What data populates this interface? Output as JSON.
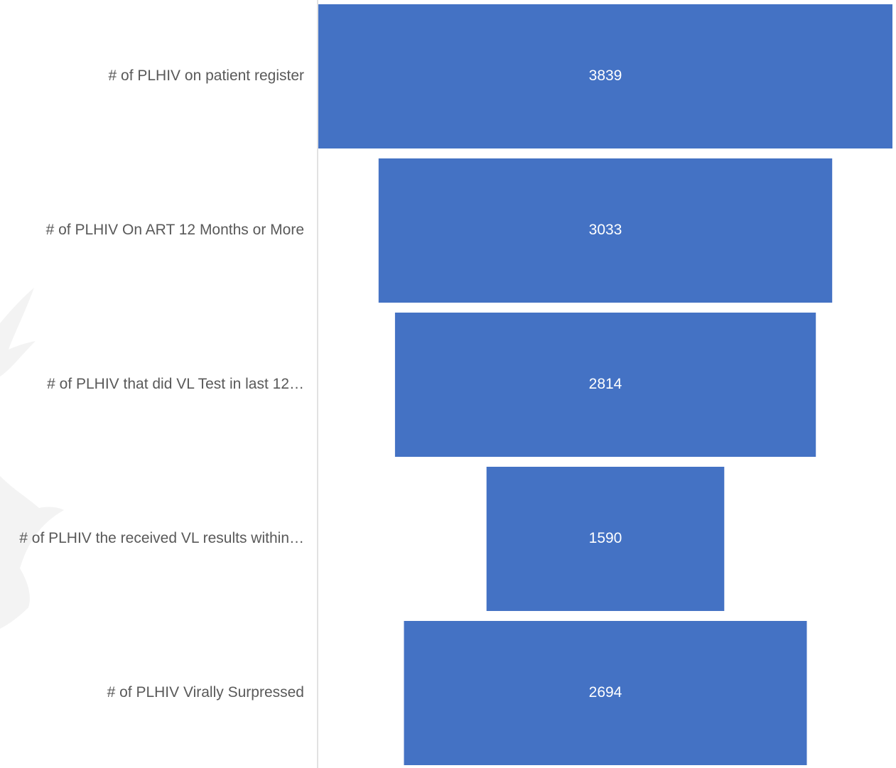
{
  "chart_data": {
    "type": "bar",
    "subtype": "funnel",
    "orientation": "horizontal",
    "categories": [
      "# of PLHIV on patient register",
      "# of PLHIV On ART 12 Months or More",
      "# of PLHIV that did VL Test in last 12…",
      "# of PLHIV the received VL results  within…",
      "# of PLHIV Virally Surpressed"
    ],
    "values": [
      3839,
      3033,
      2814,
      1590,
      2694
    ],
    "data_labels": [
      "3839",
      "3033",
      "2814",
      "1590",
      "2694"
    ],
    "title": "",
    "xlabel": "",
    "ylabel": "",
    "xlim": [
      0,
      3839
    ],
    "grid": false,
    "legend": "none"
  },
  "colors": {
    "bar": "#4472C4",
    "category_text": "#595959",
    "value_text": "#FFFFFF",
    "axis_line": "#D9D9D9",
    "background": "#FFFFFF",
    "watermark": "#F3F3F3"
  }
}
